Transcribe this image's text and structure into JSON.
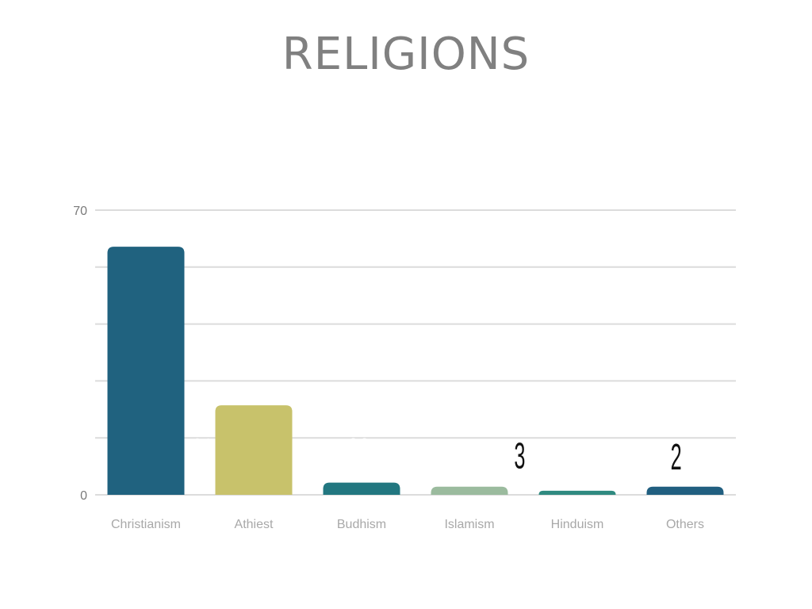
{
  "chart_data": {
    "type": "bar",
    "title": "RELIGIONS",
    "categories": [
      "Christianism",
      "Athiest",
      "Budhism",
      "Islamism",
      "Hinduism",
      "Others"
    ],
    "values": [
      61,
      22,
      3,
      2,
      1,
      2
    ],
    "colors": [
      "#20627f",
      "#c8c26b",
      "#227780",
      "#9bbb9e",
      "#2f8a80",
      "#215f80"
    ],
    "ylim": [
      0,
      70
    ],
    "yticks": [
      0,
      70
    ],
    "gridlines": [
      0,
      14,
      28,
      42,
      56,
      70
    ],
    "grid": true,
    "data_labels": true,
    "xlabel": "",
    "ylabel": ""
  }
}
